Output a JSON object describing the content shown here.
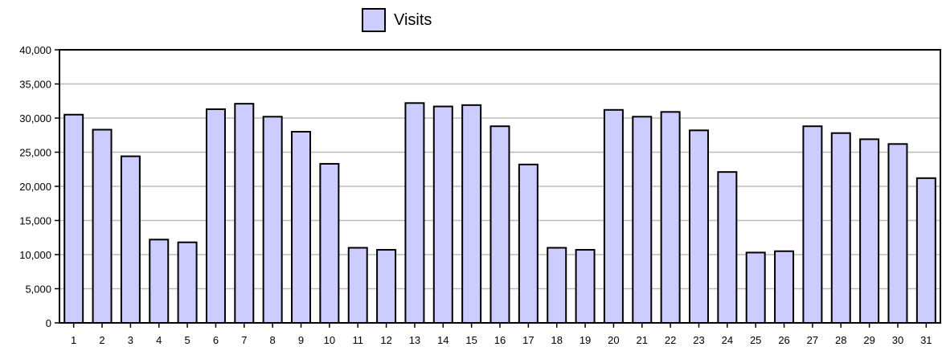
{
  "chart_data": {
    "type": "bar",
    "categories": [
      "1",
      "2",
      "3",
      "4",
      "5",
      "6",
      "7",
      "8",
      "9",
      "10",
      "11",
      "12",
      "13",
      "14",
      "15",
      "16",
      "17",
      "18",
      "19",
      "20",
      "21",
      "22",
      "23",
      "24",
      "25",
      "26",
      "27",
      "28",
      "29",
      "30",
      "31"
    ],
    "series": [
      {
        "name": "Visits",
        "values": [
          30500,
          28300,
          24400,
          12200,
          11800,
          31300,
          32100,
          30200,
          28000,
          23300,
          11000,
          10700,
          32200,
          31700,
          31900,
          28800,
          23200,
          11000,
          10700,
          31200,
          30200,
          30900,
          28200,
          22100,
          10300,
          10500,
          28800,
          27800,
          26900,
          26200,
          21200
        ]
      }
    ],
    "ylim": [
      0,
      40000
    ],
    "yticks": [
      0,
      5000,
      10000,
      15000,
      20000,
      25000,
      30000,
      35000,
      40000
    ],
    "ytick_labels": [
      "0",
      "5,000",
      "10,000",
      "15,000",
      "20,000",
      "25,000",
      "30,000",
      "35,000",
      "40,000"
    ],
    "grid": true,
    "legend_position": "top-center",
    "colors": {
      "bar_fill": "#ccccff",
      "bar_stroke": "#000000",
      "grid": "#bbbbbb",
      "axis": "#000000"
    }
  }
}
